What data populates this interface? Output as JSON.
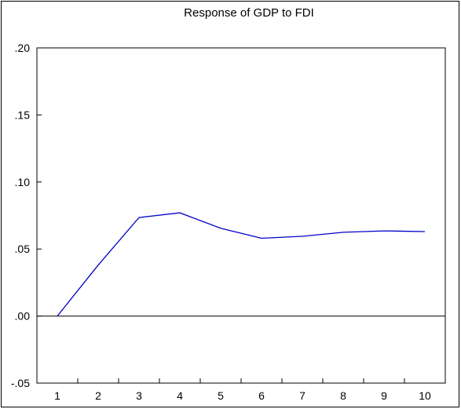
{
  "chart_data": {
    "type": "line",
    "title": "Response of GDP to FDI",
    "xlabel": "",
    "ylabel": "",
    "x": [
      1,
      2,
      3,
      4,
      5,
      6,
      7,
      8,
      9,
      10
    ],
    "series": [
      {
        "values": [
          0.0,
          0.038,
          0.0735,
          0.077,
          0.0655,
          0.058,
          0.0595,
          0.0625,
          0.0635,
          0.063
        ],
        "color": "#0000cc"
      }
    ],
    "ylim": [
      -0.05,
      0.2
    ],
    "xlim": [
      0.5,
      10.5
    ],
    "y_ticks": [
      0.2,
      0.15,
      0.1,
      0.05,
      0.0,
      -0.05
    ],
    "y_tick_labels": [
      ".20",
      ".15",
      ".10",
      ".05",
      ".00",
      "-.05"
    ],
    "x_tick_labels": [
      "1",
      "2",
      "3",
      "4",
      "5",
      "6",
      "7",
      "8",
      "9",
      "10"
    ],
    "zero_line": true,
    "grid": false,
    "legend": "none"
  }
}
